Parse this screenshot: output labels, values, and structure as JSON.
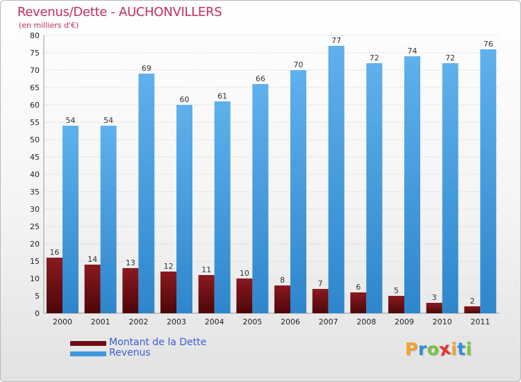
{
  "title": "Revenus/Dette - AUCHONVILLERS",
  "subtitle": "(en milliers d'€)",
  "legend": [
    {
      "label": "Montant de la Dette",
      "color": "#6b0f14"
    },
    {
      "label": "Revenus",
      "color": "#3d98dc"
    }
  ],
  "logo": {
    "letters": [
      {
        "ch": "P",
        "color": "#f2a52a"
      },
      {
        "ch": "r",
        "color": "#2f8fd3"
      },
      {
        "ch": "o",
        "color": "#7cc242"
      },
      {
        "ch": "x",
        "color": "#e0322f"
      },
      {
        "ch": "i",
        "color": "#f2a52a"
      },
      {
        "ch": "t",
        "color": "#2f8fd3"
      },
      {
        "ch": "i",
        "color": "#7cc242"
      }
    ]
  },
  "colors": {
    "dette": "#6b0f14",
    "revenus": "#3d98dc",
    "grid": "#d6d6d6",
    "axis_text": "#222222",
    "title": "#c0305a",
    "legend_text": "#3d5bd6"
  },
  "chart_data": {
    "type": "bar",
    "categories": [
      "2000",
      "2001",
      "2002",
      "2003",
      "2004",
      "2005",
      "2006",
      "2007",
      "2008",
      "2009",
      "2010",
      "2011"
    ],
    "series": [
      {
        "name": "Montant de la Dette",
        "values": [
          16,
          14,
          13,
          12,
          11,
          10,
          8,
          7,
          6,
          5,
          3,
          2
        ]
      },
      {
        "name": "Revenus",
        "values": [
          54,
          54,
          69,
          60,
          61,
          66,
          70,
          77,
          72,
          74,
          72,
          76
        ]
      }
    ],
    "ylim": [
      0,
      80
    ],
    "yticks": [
      0,
      5,
      10,
      15,
      20,
      25,
      30,
      35,
      40,
      45,
      50,
      55,
      60,
      65,
      70,
      75,
      80
    ],
    "grid": true,
    "legend_position": "bottom-left",
    "data_labels": true
  }
}
